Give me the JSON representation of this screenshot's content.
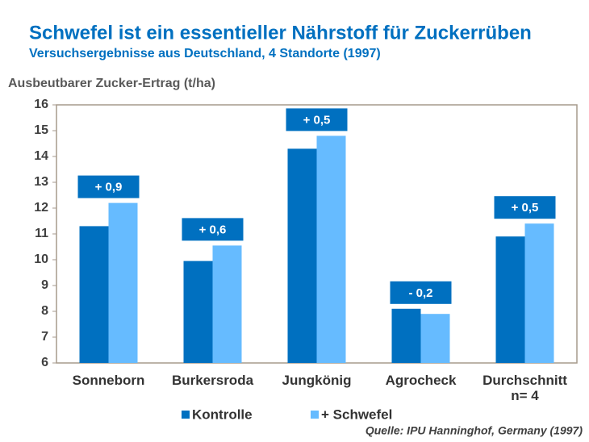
{
  "chart_data": {
    "type": "bar",
    "title": "Schwefel ist ein essentieller Nährstoff für Zuckerrüben",
    "subtitle": "Versuchsergebnisse aus Deutschland, 4 Standorte (1997)",
    "y_label": "Ausbeutbarer Zucker-Ertrag (t/ha)",
    "categories": [
      "Sonneborn",
      "Burkersroda",
      "Jungkönig",
      "Agrocheck",
      "Durchschnitt\nn= 4"
    ],
    "series": [
      {
        "name": "Kontrolle",
        "color": "#0070c0",
        "values": [
          11.3,
          9.95,
          14.3,
          8.1,
          10.9
        ]
      },
      {
        "name": "+ Schwefel",
        "color": "#66bbff",
        "values": [
          12.2,
          10.55,
          14.8,
          7.9,
          11.4
        ]
      }
    ],
    "difference_labels": [
      "+ 0,9",
      "+ 0,6",
      "+ 0,5",
      "- 0,2",
      "+ 0,5"
    ],
    "ylim": [
      6,
      16
    ],
    "yticks": [
      6,
      7,
      8,
      9,
      10,
      11,
      12,
      13,
      14,
      15,
      16
    ],
    "grid": false,
    "source": "Quelle: IPU Hanninghof,  Germany (1997)"
  }
}
